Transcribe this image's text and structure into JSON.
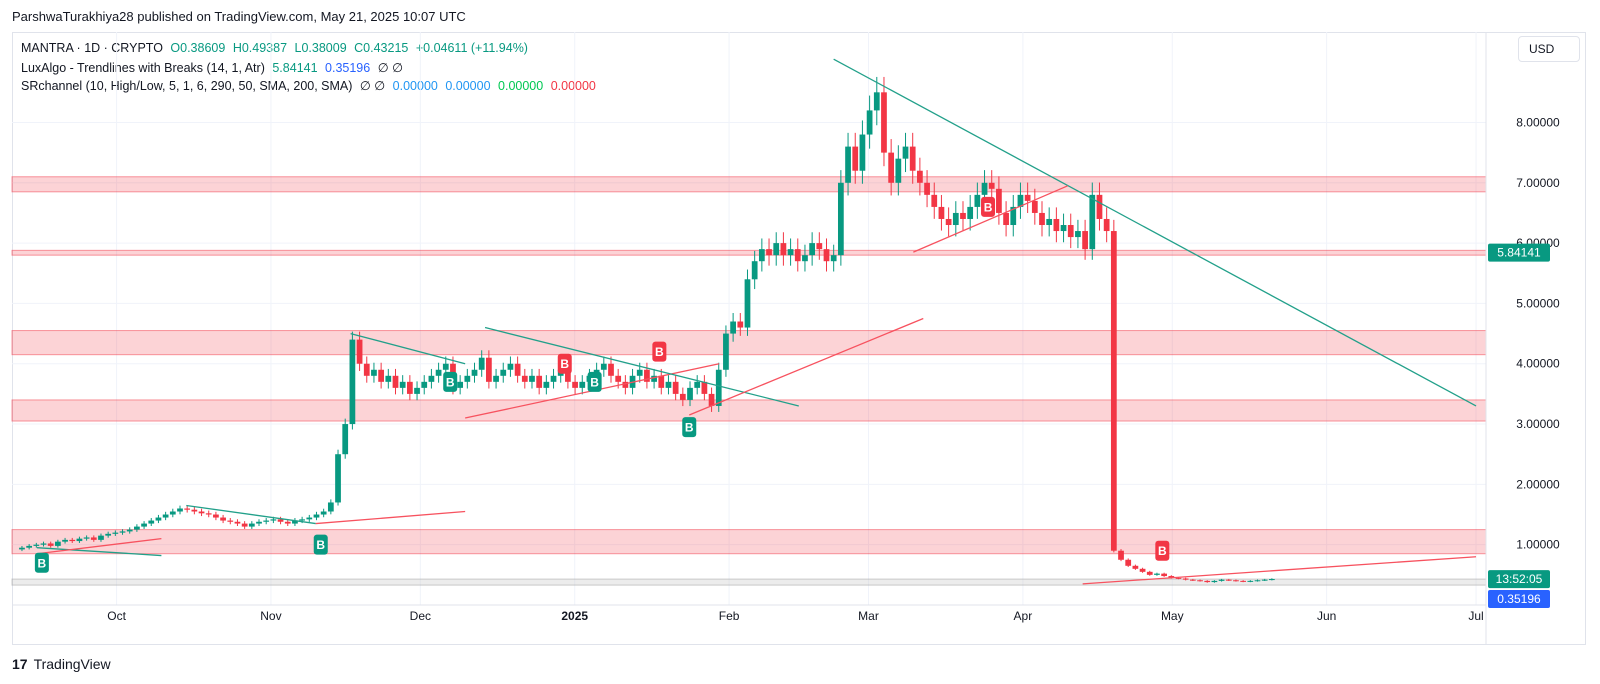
{
  "header": {
    "publish_text": "ParshwaTurakhiya28 published on TradingView.com, May 21, 2025 10:07 UTC"
  },
  "legend": {
    "symbol": "MANTRA · 1D · CRYPTO",
    "open": "O0.38609",
    "high": "H0.49387",
    "low": "L0.38009",
    "close": "C0.43215",
    "change": "+0.04611 (+11.94%)",
    "indicator1_name": "LuxAlgo - Trendlines with Breaks (14, 1, Atr)",
    "indicator1_val1": "5.84141",
    "indicator1_val2": "0.35196",
    "indicator1_flags": "∅ ∅",
    "indicator2_name": "SRchannel (10, High/Low, 5, 1, 6, 290, 50, SMA, 200, SMA)",
    "indicator2_flags": "∅ ∅",
    "indicator2_val1": "0.00000",
    "indicator2_val2": "0.00000",
    "indicator2_val3": "0.00000",
    "indicator2_val4": "0.00000"
  },
  "currency_button": "USD",
  "footer": {
    "logo_mark": "17",
    "logo_text": "TradingView"
  },
  "colors": {
    "up": "#089981",
    "down": "#f23645",
    "zone_fill": "#f23645",
    "trend_down": "#22a08a",
    "trend_up": "#f7525f",
    "price_label_up": "#089981",
    "price_label_blue": "#2962ff"
  },
  "chart_data": {
    "type": "candlestick",
    "y_range": [
      0,
      9.5
    ],
    "y_ticks": [
      {
        "value": 1,
        "label": "1.00000"
      },
      {
        "value": 2,
        "label": "2.00000"
      },
      {
        "value": 3,
        "label": "3.00000"
      },
      {
        "value": 4,
        "label": "4.00000"
      },
      {
        "value": 5,
        "label": "5.00000"
      },
      {
        "value": 6,
        "label": "6.00000"
      },
      {
        "value": 7,
        "label": "7.00000"
      },
      {
        "value": 8,
        "label": "8.00000"
      }
    ],
    "x_ticks": [
      "Oct",
      "Nov",
      "Dec",
      "2025",
      "Feb",
      "Mar",
      "Apr",
      "May",
      "Jun",
      "Jul"
    ],
    "price_labels": {
      "current_price": "5.84141",
      "countdown": "13:52:05",
      "last_value": "0.35196"
    },
    "grid": true,
    "support_resistance_zones": [
      [
        6.85,
        7.1
      ],
      [
        5.8,
        5.88
      ],
      [
        4.15,
        4.55
      ],
      [
        3.05,
        3.4
      ],
      [
        0.85,
        1.25
      ],
      [
        0.33,
        0.43
      ]
    ],
    "candles_close": [
      0.95,
      0.98,
      1.0,
      1.02,
      0.98,
      1.05,
      1.08,
      1.06,
      1.1,
      1.12,
      1.08,
      1.15,
      1.18,
      1.2,
      1.22,
      1.25,
      1.3,
      1.35,
      1.4,
      1.45,
      1.5,
      1.55,
      1.6,
      1.58,
      1.55,
      1.52,
      1.5,
      1.45,
      1.4,
      1.38,
      1.35,
      1.3,
      1.35,
      1.38,
      1.4,
      1.42,
      1.38,
      1.35,
      1.4,
      1.42,
      1.45,
      1.5,
      1.55,
      1.7,
      2.5,
      3.0,
      4.4,
      4.0,
      3.8,
      3.9,
      3.7,
      3.8,
      3.6,
      3.7,
      3.5,
      3.6,
      3.7,
      3.8,
      3.9,
      4.0,
      3.6,
      3.7,
      3.8,
      3.9,
      4.1,
      3.7,
      3.8,
      3.9,
      4.0,
      3.8,
      3.7,
      3.8,
      3.6,
      3.7,
      3.8,
      3.9,
      3.7,
      3.6,
      3.7,
      3.8,
      3.9,
      4.0,
      3.8,
      3.7,
      3.6,
      3.8,
      3.9,
      3.7,
      3.8,
      3.6,
      3.7,
      3.5,
      3.4,
      3.6,
      3.7,
      3.5,
      3.3,
      3.9,
      4.5,
      4.7,
      4.6,
      5.4,
      5.7,
      5.9,
      5.8,
      6.0,
      5.8,
      5.9,
      5.7,
      5.8,
      6.0,
      5.9,
      5.7,
      5.8,
      7.0,
      7.6,
      7.2,
      7.8,
      8.2,
      8.5,
      7.5,
      7.0,
      7.4,
      7.6,
      7.2,
      7.0,
      6.8,
      6.6,
      6.4,
      6.3,
      6.5,
      6.4,
      6.6,
      6.8,
      7.0,
      6.9,
      6.5,
      6.3,
      6.6,
      6.8,
      6.7,
      6.5,
      6.3,
      6.4,
      6.2,
      6.3,
      6.1,
      6.2,
      5.9,
      6.8,
      6.4,
      6.2,
      0.9,
      0.75,
      0.65,
      0.6,
      0.55,
      0.5,
      0.52,
      0.48,
      0.45,
      0.44,
      0.42,
      0.41,
      0.4,
      0.38,
      0.4,
      0.42,
      0.41,
      0.4,
      0.39,
      0.4,
      0.41,
      0.42,
      0.43
    ],
    "trendlines": [
      {
        "kind": "down",
        "from": [
          "2024-09-15",
          0.95
        ],
        "to": [
          "2024-10-10",
          0.82
        ]
      },
      {
        "kind": "up",
        "from": [
          "2024-09-15",
          0.85
        ],
        "to": [
          "2024-10-10",
          1.1
        ]
      },
      {
        "kind": "down",
        "from": [
          "2024-10-15",
          1.65
        ],
        "to": [
          "2024-11-10",
          1.35
        ]
      },
      {
        "kind": "up",
        "from": [
          "2024-11-10",
          1.35
        ],
        "to": [
          "2024-12-10",
          1.55
        ]
      },
      {
        "kind": "down",
        "from": [
          "2024-11-17",
          4.5
        ],
        "to": [
          "2024-12-10",
          4.0
        ]
      },
      {
        "kind": "up",
        "from": [
          "2024-12-10",
          3.1
        ],
        "to": [
          "2025-01-30",
          4.0
        ]
      },
      {
        "kind": "down",
        "from": [
          "2024-12-14",
          4.6
        ],
        "to": [
          "2025-02-15",
          3.3
        ]
      },
      {
        "kind": "up",
        "from": [
          "2025-01-24",
          3.15
        ],
        "to": [
          "2025-03-12",
          4.75
        ]
      },
      {
        "kind": "down",
        "from": [
          "2025-02-22",
          9.05
        ],
        "to": [
          "2025-07-01",
          3.3
        ]
      },
      {
        "kind": "up",
        "from": [
          "2025-03-10",
          5.85
        ],
        "to": [
          "2025-04-10",
          6.95
        ]
      },
      {
        "kind": "up",
        "from": [
          "2025-04-13",
          0.35
        ],
        "to": [
          "2025-07-01",
          0.8
        ]
      }
    ],
    "break_labels": [
      {
        "type": "B",
        "color": "up",
        "date": "2024-09-16",
        "price": 0.7
      },
      {
        "type": "B",
        "color": "up",
        "date": "2024-11-11",
        "price": 1.0
      },
      {
        "type": "B",
        "color": "up",
        "date": "2024-12-07",
        "price": 3.7
      },
      {
        "type": "B",
        "color": "down",
        "date": "2024-12-30",
        "price": 4.0
      },
      {
        "type": "B",
        "color": "up",
        "date": "2025-01-05",
        "price": 3.7
      },
      {
        "type": "B",
        "color": "down",
        "date": "2025-01-18",
        "price": 4.2
      },
      {
        "type": "B",
        "color": "up",
        "date": "2025-01-24",
        "price": 2.95
      },
      {
        "type": "B",
        "color": "down",
        "date": "2025-03-25",
        "price": 6.6
      },
      {
        "type": "B",
        "color": "down",
        "date": "2025-04-29",
        "price": 0.9
      }
    ]
  }
}
